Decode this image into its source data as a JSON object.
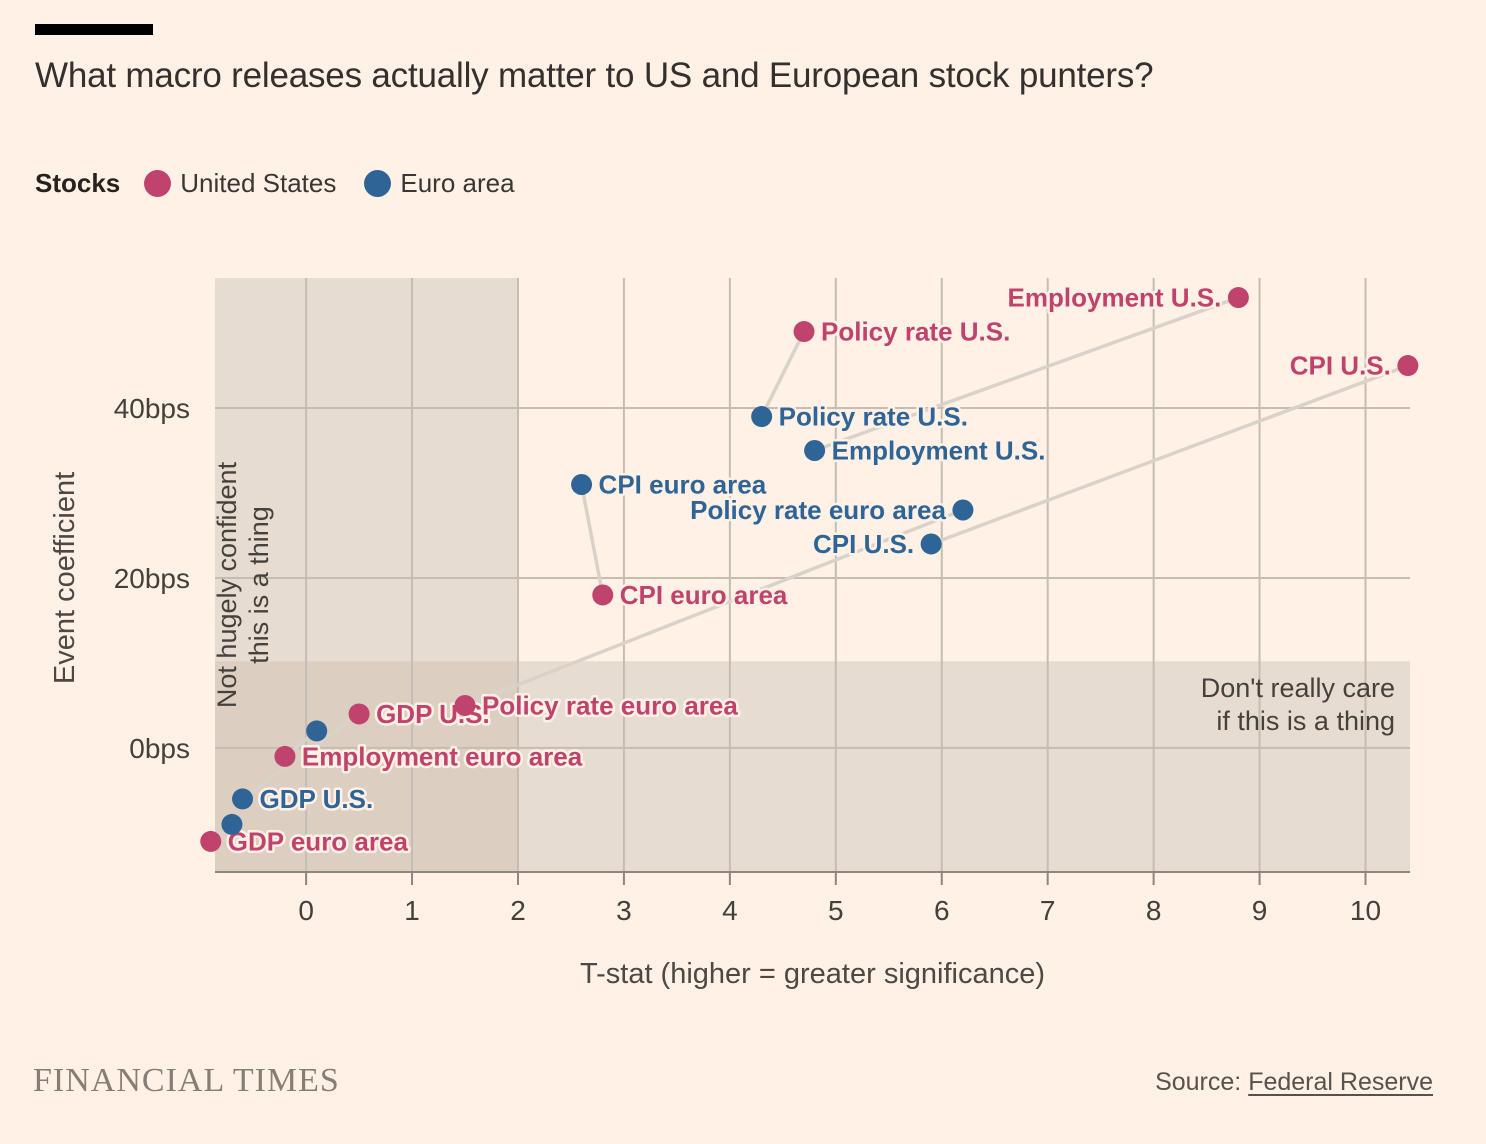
{
  "header": {
    "title": "What macro releases actually matter to US and European stock punters?"
  },
  "legend": {
    "label": "Stocks",
    "items": [
      "United States",
      "Euro area"
    ]
  },
  "colors": {
    "background": "#fff1e5",
    "us": "#c0436d",
    "euro": "#2f6496",
    "band": "#e7dcd1",
    "band_overlap": "#dccfc2",
    "grid": "#c5bdb3",
    "axis": "#8d867e",
    "tick_text": "#44403b",
    "pair_line": "#d9d2c9",
    "title_text": "#33302e",
    "region_text": "#45413c"
  },
  "chart_data": {
    "type": "scatter",
    "title": "What macro releases actually matter to US and European stock punters?",
    "xlabel": "T-stat (higher = greater significance)",
    "ylabel": "Event coefficient",
    "xlim": [
      -0.86,
      10.42
    ],
    "ylim": [
      -14.6,
      55.3
    ],
    "grid": true,
    "x_ticks": [
      0,
      1,
      2,
      3,
      4,
      5,
      6,
      7,
      8,
      9,
      10
    ],
    "y_ticks": [
      {
        "value": 0,
        "label": "0bps"
      },
      {
        "value": 20,
        "label": "20bps"
      },
      {
        "value": 40,
        "label": "40bps"
      }
    ],
    "regions": [
      {
        "id": "low-significance",
        "axis": "x",
        "max": 2,
        "label_lines": [
          "Not hugely confident",
          "this is a thing"
        ]
      },
      {
        "id": "low-coefficient",
        "axis": "y",
        "max": 10.2,
        "label_lines": [
          "Don't really care",
          "if this is a thing"
        ]
      }
    ],
    "pair_line_note": "same macro event connected across the two stock markets",
    "series": [
      {
        "name": "United States",
        "color": "#c0436d",
        "points": [
          {
            "event": "GDP euro area",
            "x": -0.9,
            "y": -11,
            "label": "GDP euro area",
            "label_side": "right"
          },
          {
            "event": "Employment euro area",
            "x": -0.2,
            "y": -1,
            "label": "Employment euro area",
            "label_side": "right"
          },
          {
            "event": "GDP U.S.",
            "x": 0.5,
            "y": 4,
            "label": "GDP U.S.",
            "label_side": "right"
          },
          {
            "event": "Policy rate euro area",
            "x": 1.5,
            "y": 5,
            "label": "Policy rate euro area",
            "label_side": "right"
          },
          {
            "event": "CPI euro area",
            "x": 2.8,
            "y": 18,
            "label": "CPI euro area",
            "label_side": "right"
          },
          {
            "event": "Policy rate U.S.",
            "x": 4.7,
            "y": 49,
            "label": "Policy rate U.S.",
            "label_side": "right"
          },
          {
            "event": "Employment U.S.",
            "x": 8.8,
            "y": 53,
            "label": "Employment U.S.",
            "label_side": "left"
          },
          {
            "event": "CPI U.S.",
            "x": 10.4,
            "y": 45,
            "label": "CPI U.S.",
            "label_side": "left"
          }
        ]
      },
      {
        "name": "Euro area",
        "color": "#2f6496",
        "points": [
          {
            "event": "GDP euro area",
            "x": -0.7,
            "y": -9,
            "label": "",
            "label_side": "none"
          },
          {
            "event": "GDP U.S.",
            "x": -0.6,
            "y": -6,
            "label": "GDP U.S.",
            "label_side": "right"
          },
          {
            "event": "Employment euro area",
            "x": 0.1,
            "y": 2,
            "label": "",
            "label_side": "none"
          },
          {
            "event": "CPI euro area",
            "x": 2.6,
            "y": 31,
            "label": "CPI euro area",
            "label_side": "right"
          },
          {
            "event": "Policy rate U.S.",
            "x": 4.3,
            "y": 39,
            "label": "Policy rate U.S.",
            "label_side": "right"
          },
          {
            "event": "Employment U.S.",
            "x": 4.8,
            "y": 35,
            "label": "Employment U.S.",
            "label_side": "right"
          },
          {
            "event": "CPI U.S.",
            "x": 5.9,
            "y": 24,
            "label": "CPI U.S.",
            "label_side": "left"
          },
          {
            "event": "Policy rate euro area",
            "x": 6.2,
            "y": 28,
            "label": "Policy rate euro area",
            "label_side": "left"
          }
        ]
      }
    ]
  },
  "footer": {
    "brand": "FINANCIAL TIMES",
    "source_label": "Source: ",
    "source_link": "Federal Reserve"
  }
}
